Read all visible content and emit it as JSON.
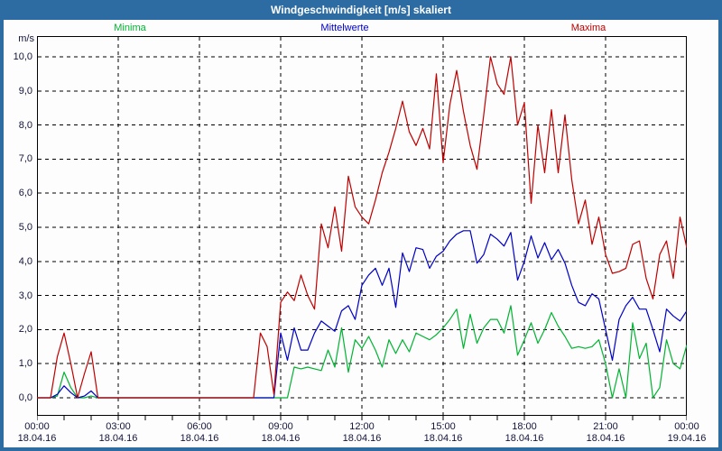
{
  "window": {
    "title": "Windgeschwindigkeit [m/s] skaliert"
  },
  "colors": {
    "window_frame": "#2D6CA2",
    "titlebar_text": "#FFFFFF",
    "plot_background": "#FCFDFC",
    "grid": "#000000",
    "axis_text": "#14143C",
    "minima": "#00B432",
    "mittelwerte": "#0000C8",
    "maxima": "#C00000"
  },
  "legend": [
    {
      "label": "Minima",
      "color": "#00B432"
    },
    {
      "label": "Mittelwerte",
      "color": "#0000C8"
    },
    {
      "label": "Maxima",
      "color": "#C00000"
    }
  ],
  "y_axis": {
    "unit": "m/s",
    "tick_labels": [
      "10,0",
      "9,0",
      "8,0",
      "7,0",
      "6,0",
      "5,0",
      "4,0",
      "3,0",
      "2,0",
      "1,0",
      "0,0"
    ]
  },
  "x_axis": {
    "tick_labels": [
      {
        "time": "00:00",
        "date": "18.04.16"
      },
      {
        "time": "03:00",
        "date": "18.04.16"
      },
      {
        "time": "06:00",
        "date": "18.04.16"
      },
      {
        "time": "09:00",
        "date": "18.04.16"
      },
      {
        "time": "12:00",
        "date": "18.04.16"
      },
      {
        "time": "15:00",
        "date": "18.04.16"
      },
      {
        "time": "18:00",
        "date": "18.04.16"
      },
      {
        "time": "21:00",
        "date": "18.04.16"
      },
      {
        "time": "00:00",
        "date": "19.04.16"
      }
    ]
  },
  "chart_data": {
    "type": "line",
    "title": "Windgeschwindigkeit [m/s] skaliert",
    "ylabel": "m/s",
    "ylim": [
      0,
      10
    ],
    "xlim_hours": [
      0,
      24
    ],
    "x_start": 0,
    "x_step_hours": 0.25,
    "x_tick_interval_hours": 3,
    "minor_tick_interval_hours": 1,
    "grid": "dashed",
    "legend_position": "top",
    "series": [
      {
        "name": "Minima",
        "color": "#00B432",
        "values": [
          0,
          0,
          0,
          0.05,
          0.75,
          0.3,
          0,
          0,
          0.05,
          0,
          0,
          0,
          0,
          0,
          0,
          0,
          0,
          0,
          0,
          0,
          0,
          0,
          0,
          0,
          0,
          0,
          0,
          0,
          0,
          0,
          0,
          0,
          0,
          0,
          0,
          0,
          0,
          0,
          0.9,
          0.85,
          0.9,
          0.85,
          0.8,
          1.4,
          0.9,
          2.05,
          0.75,
          1.7,
          1.45,
          1.8,
          1.4,
          0.9,
          1.7,
          1.3,
          1.7,
          1.35,
          1.9,
          1.8,
          1.7,
          1.85,
          2.05,
          2.3,
          2.6,
          1.45,
          2.45,
          1.6,
          2.05,
          2.3,
          2.3,
          1.9,
          2.7,
          1.25,
          1.7,
          2.2,
          1.6,
          2.0,
          2.5,
          2.1,
          1.8,
          1.45,
          1.5,
          1.45,
          1.5,
          1.7,
          1.0,
          0,
          0.85,
          0,
          2.2,
          1.15,
          1.6,
          0,
          0.3,
          1.7,
          1.0,
          0.85,
          1.55
        ]
      },
      {
        "name": "Mittelwerte",
        "color": "#0000C8",
        "values": [
          0,
          0,
          0,
          0.1,
          0.35,
          0.15,
          0,
          0.05,
          0.2,
          0,
          0,
          0,
          0,
          0,
          0,
          0,
          0,
          0,
          0,
          0,
          0,
          0,
          0,
          0,
          0,
          0,
          0,
          0,
          0,
          0,
          0,
          0,
          0,
          0,
          0,
          0,
          1.9,
          1.1,
          2.05,
          1.4,
          1.4,
          1.9,
          2.25,
          2.1,
          1.95,
          2.55,
          2.7,
          2.3,
          3.3,
          3.6,
          3.8,
          3.3,
          3.8,
          2.65,
          4.25,
          3.7,
          4.4,
          4.35,
          3.8,
          4.15,
          4.3,
          4.6,
          4.8,
          4.9,
          4.9,
          3.95,
          4.2,
          4.8,
          4.65,
          4.45,
          4.85,
          3.45,
          4.0,
          4.75,
          4.1,
          4.55,
          4.05,
          4.35,
          3.95,
          3.3,
          2.8,
          2.7,
          3.05,
          2.9,
          2.0,
          1.1,
          2.3,
          2.7,
          2.95,
          2.6,
          2.6,
          2.0,
          1.35,
          2.6,
          2.4,
          2.25,
          2.55
        ]
      },
      {
        "name": "Maxima",
        "color": "#C00000",
        "values": [
          0,
          0,
          0,
          1.2,
          1.9,
          1.0,
          0,
          0.7,
          1.35,
          0,
          0,
          0,
          0,
          0,
          0,
          0,
          0,
          0,
          0,
          0,
          0,
          0,
          0,
          0,
          0,
          0,
          0,
          0,
          0,
          0,
          0,
          0,
          0,
          1.9,
          1.5,
          0.1,
          2.8,
          3.1,
          2.85,
          3.6,
          3.0,
          2.6,
          5.1,
          4.4,
          5.6,
          4.3,
          6.5,
          5.6,
          5.3,
          5.1,
          5.8,
          6.6,
          7.2,
          7.9,
          8.7,
          7.8,
          7.4,
          7.9,
          7.3,
          9.5,
          6.9,
          8.6,
          9.6,
          8.4,
          7.4,
          6.7,
          8.3,
          10.0,
          9.2,
          8.9,
          10.0,
          8.0,
          8.65,
          5.7,
          8.0,
          6.6,
          8.45,
          6.6,
          8.3,
          6.4,
          5.1,
          5.8,
          4.5,
          5.3,
          4.2,
          3.65,
          3.7,
          3.8,
          4.5,
          4.6,
          3.5,
          2.9,
          4.2,
          4.6,
          3.5,
          5.3,
          4.4
        ]
      }
    ]
  }
}
